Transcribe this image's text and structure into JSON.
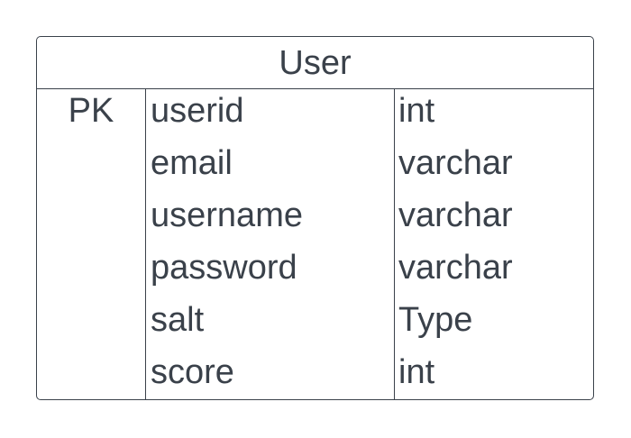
{
  "entity": {
    "title": "User",
    "rows": [
      {
        "key": "PK",
        "name": "userid",
        "type": "int"
      },
      {
        "key": "",
        "name": "email",
        "type": "varchar"
      },
      {
        "key": "",
        "name": "username",
        "type": "varchar"
      },
      {
        "key": "",
        "name": "password",
        "type": "varchar"
      },
      {
        "key": "",
        "name": "salt",
        "type": "Type"
      },
      {
        "key": "",
        "name": "score",
        "type": "int"
      }
    ]
  }
}
